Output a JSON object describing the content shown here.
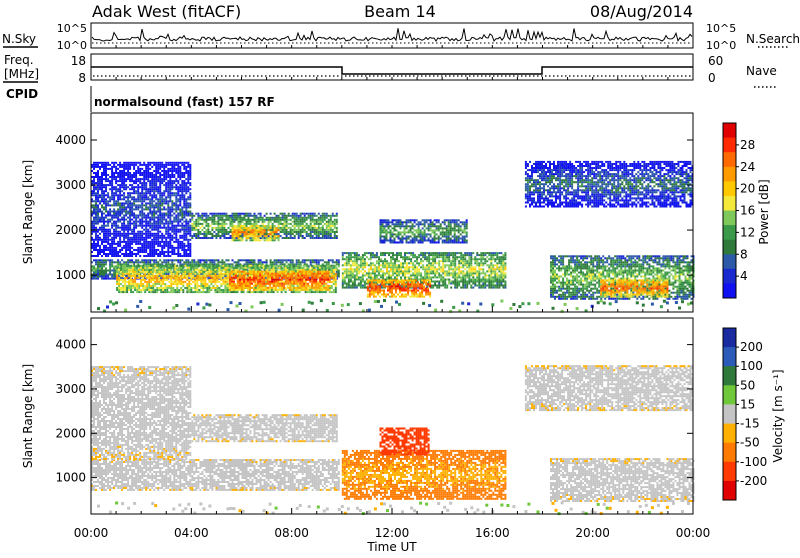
{
  "header": {
    "station": "Adak West (fitACF)",
    "beam": "Beam 14",
    "date": "08/Aug/2014"
  },
  "nsky_panel": {
    "left_label": "N.Sky",
    "left_ticks": [
      "10^5",
      "10^0"
    ],
    "right_ticks": [
      "10^5",
      "10^0"
    ],
    "right_label": "N.Search"
  },
  "freq_panel": {
    "left_label_line1": "Freq.",
    "left_label_line2": "[MHz]",
    "left_ticks": [
      "18",
      "8"
    ],
    "right_ticks": [
      "60",
      "0"
    ],
    "right_label": "Nave",
    "frequency_steps": [
      {
        "start": "00:00",
        "end": "10:00",
        "level": "high"
      },
      {
        "start": "10:00",
        "end": "18:00",
        "level": "low"
      },
      {
        "start": "18:00",
        "end": "24:00",
        "level": "high"
      }
    ]
  },
  "cpid_panel": {
    "label": "CPID",
    "text": "normalsound (fast) 157 RF"
  },
  "power_panel": {
    "ylabel": "Slant Range [km]",
    "yticks": [
      "4000",
      "3000",
      "2000",
      "1000"
    ],
    "colorbar_label": "Power [dB]",
    "colorbar_ticks": [
      "28",
      "24",
      "20",
      "16",
      "12",
      "8",
      "4"
    ],
    "colorbar_colors": [
      "#e00000",
      "#ff2a00",
      "#ff6a00",
      "#ff9a00",
      "#ffc800",
      "#f4e83a",
      "#7ec95a",
      "#3a9a4a",
      "#2f7a3a",
      "#2c5aa8",
      "#1a2ad0",
      "#1010f0"
    ]
  },
  "velocity_panel": {
    "ylabel": "Slant Range [km]",
    "yticks": [
      "4000",
      "3000",
      "2000",
      "1000"
    ],
    "colorbar_label": "Velocity [m s⁻¹]",
    "colorbar_ticks": [
      "200",
      "100",
      "50",
      "15",
      "-15",
      "-50",
      "-100",
      "-200"
    ],
    "colorbar_colors": [
      "#1a2aa0",
      "#2c5ab8",
      "#2f7a3a",
      "#6ec83a",
      "#c4c4c4",
      "#ffb000",
      "#ff7a00",
      "#ff3a00",
      "#e00000"
    ]
  },
  "x_axis": {
    "ticks": [
      "00:00",
      "04:00",
      "08:00",
      "12:00",
      "16:00",
      "20:00",
      "00:00"
    ],
    "label": "Time UT"
  },
  "chart_data": {
    "type": "heatmap",
    "title": "Adak West (fitACF)",
    "xlabel": "Time UT",
    "ylabel": "Slant Range [km]",
    "x_range_hours": [
      0,
      24
    ],
    "y_range_km": [
      180,
      4600
    ],
    "power_colorbar_range_db": [
      0,
      30
    ],
    "velocity_colorbar_range": [
      -200,
      200
    ],
    "power_bands": [
      {
        "t": [
          0.0,
          9.9
        ],
        "r": [
          900,
          1350
        ],
        "db": 12
      },
      {
        "t": [
          1.0,
          9.8
        ],
        "r": [
          600,
          1200
        ],
        "db": 20
      },
      {
        "t": [
          5.5,
          9.5
        ],
        "r": [
          650,
          1100
        ],
        "db": 26
      },
      {
        "t": [
          4.0,
          9.8
        ],
        "r": [
          1800,
          2350
        ],
        "db": 14
      },
      {
        "t": [
          5.6,
          7.5
        ],
        "r": [
          1750,
          2100
        ],
        "db": 22
      },
      {
        "t": [
          10.0,
          16.5
        ],
        "r": [
          700,
          1500
        ],
        "db": 16
      },
      {
        "t": [
          11.0,
          13.5
        ],
        "r": [
          500,
          900
        ],
        "db": 26
      },
      {
        "t": [
          11.5,
          15.0
        ],
        "r": [
          1700,
          2200
        ],
        "db": 12
      },
      {
        "t": [
          18.3,
          24.0
        ],
        "r": [
          450,
          1400
        ],
        "db": 14
      },
      {
        "t": [
          20.3,
          23.0
        ],
        "r": [
          500,
          900
        ],
        "db": 24
      },
      {
        "t": [
          0.0,
          4.0
        ],
        "r": [
          1400,
          3500
        ],
        "db": 6
      },
      {
        "t": [
          17.3,
          24.0
        ],
        "r": [
          2500,
          3500
        ],
        "db": 8
      }
    ],
    "velocity_bands": [
      {
        "t": [
          0.0,
          9.9
        ],
        "r": [
          700,
          1400
        ],
        "v": 0
      },
      {
        "t": [
          4.0,
          9.8
        ],
        "r": [
          1800,
          2400
        ],
        "v": 0
      },
      {
        "t": [
          10.0,
          16.5
        ],
        "r": [
          500,
          1600
        ],
        "v": -60
      },
      {
        "t": [
          11.5,
          13.5
        ],
        "r": [
          1500,
          2100
        ],
        "v": -120
      },
      {
        "t": [
          18.3,
          24.0
        ],
        "r": [
          450,
          1400
        ],
        "v": 0
      },
      {
        "t": [
          0.0,
          4.0
        ],
        "r": [
          1400,
          3500
        ],
        "v": 0
      },
      {
        "t": [
          17.3,
          24.0
        ],
        "r": [
          2500,
          3500
        ],
        "v": 0
      }
    ]
  }
}
